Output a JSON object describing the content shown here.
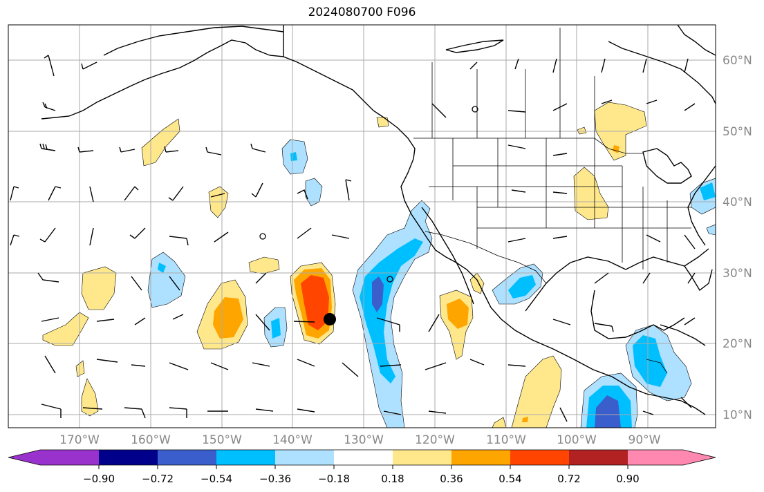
{
  "title": "2024080700 F096",
  "longitude_labels": [
    "170°W",
    "160°W",
    "150°W",
    "140°W",
    "130°W",
    "120°W",
    "110°W",
    "100°W",
    "90°W"
  ],
  "latitude_labels": [
    "60°N",
    "50°N",
    "40°N",
    "30°N",
    "20°N",
    "10°N"
  ],
  "colorbar": {
    "tick_labels": [
      "−0.90",
      "−0.72",
      "−0.54",
      "−0.36",
      "−0.18",
      "0.18",
      "0.36",
      "0.54",
      "0.72",
      "0.90"
    ],
    "colors": [
      "#9932cc",
      "#00008b",
      "#3a5fcd",
      "#00bfff",
      "#aee0ff",
      "#ffffff",
      "#ffe88c",
      "#ffa500",
      "#ff4500",
      "#b22222",
      "#ff88b0"
    ]
  },
  "map_features": {
    "grid": true,
    "lat_range_deg_n": [
      8,
      65
    ],
    "lon_range_deg_w": [
      180,
      80
    ],
    "wind_barbs": true,
    "marker": "black dot near 135°W 23°N"
  },
  "colors": {
    "neg_light": "#aee0ff",
    "neg_mid": "#00bfff",
    "neg_dark": "#3a5fcd",
    "pos_light": "#ffe88c",
    "pos_mid": "#ffa500",
    "pos_dark": "#ff4500",
    "grid": "#aaaaaa",
    "axis_label": "#888888"
  }
}
